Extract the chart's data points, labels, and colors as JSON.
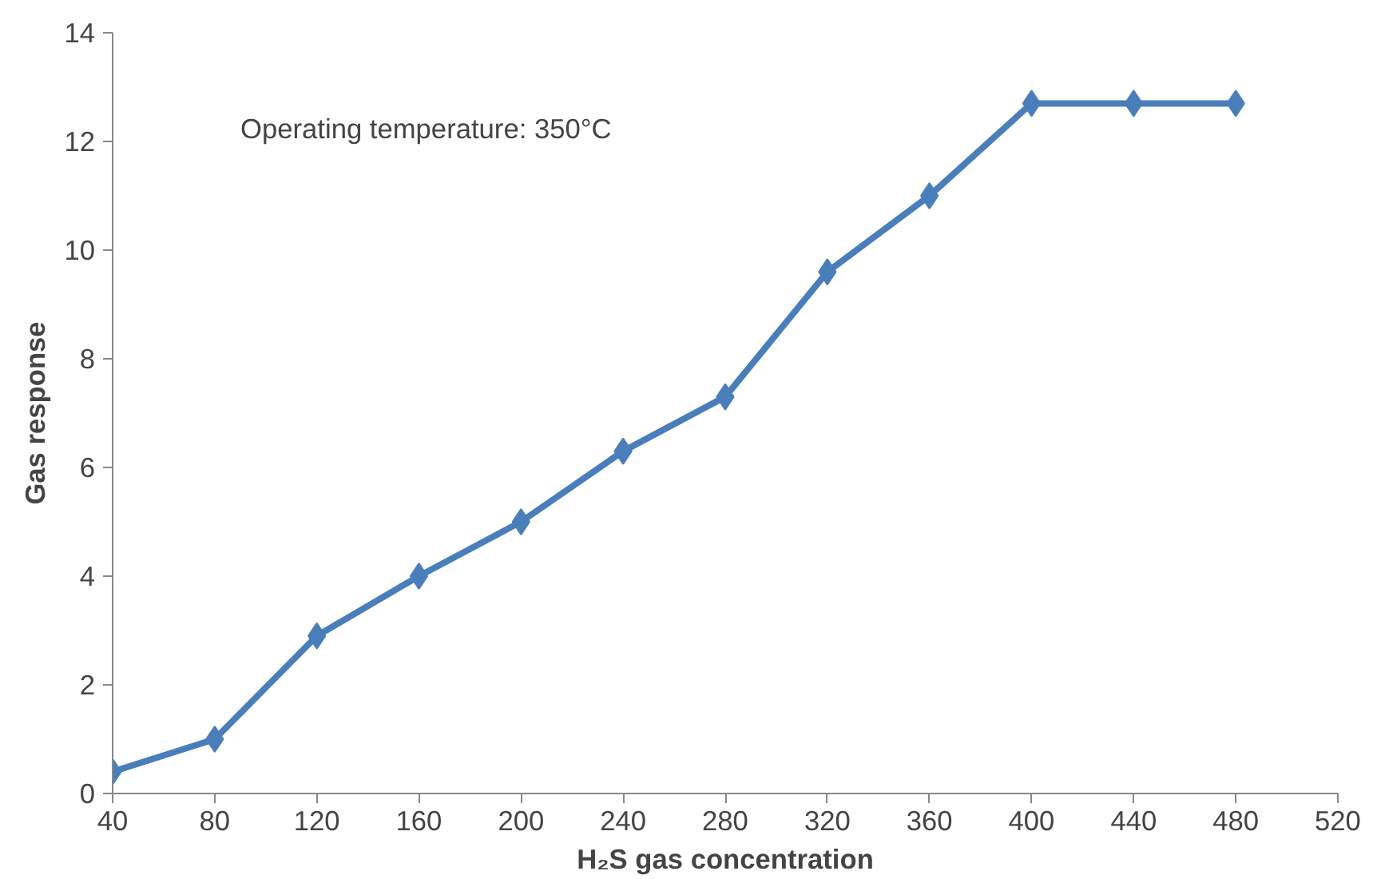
{
  "chart_data": {
    "type": "line",
    "xlabel": "H₂S gas concentration",
    "ylabel": "Gas response",
    "annotations": [
      "Operating temperature: 350°C"
    ],
    "x": [
      40,
      80,
      120,
      160,
      200,
      240,
      280,
      320,
      360,
      400,
      440,
      480
    ],
    "series": [
      {
        "color": "#4a7ebb",
        "values": [
          0.4,
          1.0,
          2.9,
          4.0,
          5.0,
          6.3,
          7.3,
          9.6,
          11.0,
          12.7,
          12.7,
          12.7
        ]
      }
    ],
    "xlim": [
      40,
      520
    ],
    "ylim": [
      0,
      14
    ],
    "xticks": [
      40,
      80,
      120,
      160,
      200,
      240,
      280,
      320,
      360,
      400,
      440,
      480,
      520
    ],
    "yticks": [
      0,
      2,
      4,
      6,
      8,
      10,
      12,
      14
    ],
    "grid": false,
    "marker": "diamond",
    "line_style": "solid"
  }
}
